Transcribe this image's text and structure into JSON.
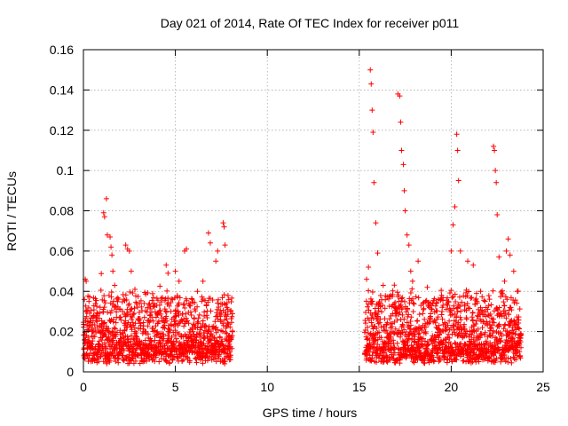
{
  "chart_data": {
    "type": "scatter",
    "title": "Day 021 of 2014, Rate Of TEC Index for receiver p011",
    "xlabel": "GPS time / hours",
    "ylabel": "ROTI / TECUs",
    "xlim": [
      0,
      25
    ],
    "ylim": [
      0,
      0.16
    ],
    "xticks": [
      0,
      5,
      10,
      15,
      20,
      25
    ],
    "xtick_labels": [
      "0",
      "5",
      "10",
      "15",
      "20",
      "25"
    ],
    "yticks": [
      0,
      0.02,
      0.04,
      0.06,
      0.08,
      0.1,
      0.12,
      0.14,
      0.16
    ],
    "ytick_labels": [
      "0",
      "0.02",
      "0.04",
      "0.06",
      "0.08",
      "0.1",
      "0.12",
      "0.14",
      "0.16"
    ],
    "grid": true,
    "marker": "+",
    "color": "#ff0000",
    "series": [
      {
        "name": "ROTI",
        "segments": [
          [
            0.0,
            8.1
          ],
          [
            15.3,
            23.8
          ]
        ],
        "points": [
          [
            0.1,
            0.046
          ],
          [
            0.15,
            0.045
          ],
          [
            0.2,
            0.03
          ],
          [
            0.3,
            0.035
          ],
          [
            0.5,
            0.02
          ],
          [
            1.1,
            0.079
          ],
          [
            1.15,
            0.077
          ],
          [
            1.25,
            0.086
          ],
          [
            1.3,
            0.068
          ],
          [
            1.45,
            0.067
          ],
          [
            1.5,
            0.062
          ],
          [
            1.55,
            0.058
          ],
          [
            1.6,
            0.05
          ],
          [
            1.7,
            0.043
          ],
          [
            2.3,
            0.063
          ],
          [
            2.4,
            0.061
          ],
          [
            2.5,
            0.06
          ],
          [
            2.6,
            0.05
          ],
          [
            2.8,
            0.041
          ],
          [
            3.3,
            0.034
          ],
          [
            3.9,
            0.033
          ],
          [
            4.5,
            0.053
          ],
          [
            4.6,
            0.049
          ],
          [
            5.0,
            0.05
          ],
          [
            5.2,
            0.045
          ],
          [
            5.5,
            0.06
          ],
          [
            5.6,
            0.061
          ],
          [
            6.2,
            0.04
          ],
          [
            6.5,
            0.045
          ],
          [
            6.8,
            0.069
          ],
          [
            6.9,
            0.064
          ],
          [
            7.2,
            0.055
          ],
          [
            7.3,
            0.06
          ],
          [
            7.6,
            0.074
          ],
          [
            7.65,
            0.072
          ],
          [
            7.7,
            0.063
          ],
          [
            7.9,
            0.036
          ],
          [
            8.0,
            0.03
          ],
          [
            15.4,
            0.046
          ],
          [
            15.5,
            0.052
          ],
          [
            15.6,
            0.15
          ],
          [
            15.65,
            0.143
          ],
          [
            15.7,
            0.13
          ],
          [
            15.75,
            0.119
          ],
          [
            15.8,
            0.094
          ],
          [
            15.9,
            0.074
          ],
          [
            16.0,
            0.059
          ],
          [
            16.3,
            0.043
          ],
          [
            17.1,
            0.138
          ],
          [
            17.2,
            0.137
          ],
          [
            17.25,
            0.124
          ],
          [
            17.3,
            0.11
          ],
          [
            17.4,
            0.103
          ],
          [
            17.45,
            0.09
          ],
          [
            17.5,
            0.08
          ],
          [
            17.6,
            0.068
          ],
          [
            17.7,
            0.063
          ],
          [
            17.8,
            0.05
          ],
          [
            17.9,
            0.045
          ],
          [
            18.2,
            0.055
          ],
          [
            18.7,
            0.042
          ],
          [
            19.2,
            0.034
          ],
          [
            19.5,
            0.03
          ],
          [
            20.0,
            0.06
          ],
          [
            20.1,
            0.073
          ],
          [
            20.2,
            0.082
          ],
          [
            20.3,
            0.118
          ],
          [
            20.35,
            0.11
          ],
          [
            20.4,
            0.095
          ],
          [
            20.5,
            0.06
          ],
          [
            20.9,
            0.055
          ],
          [
            21.2,
            0.053
          ],
          [
            21.6,
            0.04
          ],
          [
            22.3,
            0.112
          ],
          [
            22.35,
            0.11
          ],
          [
            22.4,
            0.1
          ],
          [
            22.45,
            0.094
          ],
          [
            22.5,
            0.078
          ],
          [
            22.6,
            0.057
          ],
          [
            22.9,
            0.045
          ],
          [
            23.0,
            0.06
          ],
          [
            23.1,
            0.066
          ],
          [
            23.2,
            0.058
          ],
          [
            23.4,
            0.05
          ],
          [
            23.6,
            0.04
          ]
        ]
      }
    ]
  }
}
